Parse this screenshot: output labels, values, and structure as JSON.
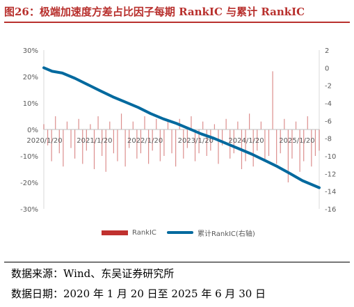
{
  "title": "图26：极端加速度方差占比因子每期 RankIC 与累计 RankIC",
  "legend": {
    "bar_label": "RankIC",
    "line_label": "累计RankIC(右轴)"
  },
  "notes": {
    "source": "数据来源：Wind、东吴证券研究所",
    "date": "数据日期：2020 年 1 月 20 日至 2025 年 6 月 30 日"
  },
  "colors": {
    "bar": "#c0312f",
    "line": "#00699e",
    "title": "#b8302d"
  },
  "chart_data": {
    "type": "bar",
    "combo": "bar + line (secondary axis)",
    "xlabel": "",
    "x_tick_labels": [
      "2020/1/20",
      "2021/1/20",
      "2022/1/20",
      "2023/1/20",
      "2024/1/20",
      "2025/1/20"
    ],
    "x_tick_dates": [
      "2020-01-20",
      "2021-01-20",
      "2022-01-20",
      "2023-01-20",
      "2024-01-20",
      "2025-01-20"
    ],
    "x_range": [
      "2020-01-20",
      "2025-06-30"
    ],
    "y_left": {
      "label": "",
      "min": -0.3,
      "max": 0.3,
      "ticks": [
        0.3,
        0.2,
        0.1,
        0.0,
        -0.1,
        -0.2,
        -0.3
      ],
      "tick_labels": [
        "30%",
        "20%",
        "10%",
        "0%",
        "-10%",
        "-20%",
        "-30%"
      ]
    },
    "y_right": {
      "label": "",
      "min": -16,
      "max": 2,
      "ticks": [
        2,
        0,
        -2,
        -4,
        -6,
        -8,
        -10,
        -12,
        -14,
        -16
      ],
      "tick_labels": [
        "2",
        "0",
        "-2",
        "-4",
        "-6",
        "-8",
        "-10",
        "-12",
        "-14",
        "-16"
      ]
    },
    "grid": false,
    "legend_position": "bottom",
    "series": [
      {
        "name": "RankIC",
        "type": "bar",
        "axis": "left",
        "x": [
          "2020-01-20",
          "2020-02-17",
          "2020-03-16",
          "2020-04-13",
          "2020-05-11",
          "2020-06-08",
          "2020-07-06",
          "2020-08-03",
          "2020-08-31",
          "2020-09-28",
          "2020-10-26",
          "2020-11-23",
          "2020-12-21",
          "2021-01-18",
          "2021-02-15",
          "2021-03-15",
          "2021-04-12",
          "2021-05-10",
          "2021-06-07",
          "2021-07-05",
          "2021-08-02",
          "2021-08-30",
          "2021-09-27",
          "2021-10-25",
          "2021-11-22",
          "2021-12-20",
          "2022-01-17",
          "2022-02-14",
          "2022-03-14",
          "2022-04-11",
          "2022-05-09",
          "2022-06-06",
          "2022-07-04",
          "2022-08-01",
          "2022-08-29",
          "2022-09-26",
          "2022-10-24",
          "2022-11-21",
          "2022-12-19",
          "2023-01-16",
          "2023-02-13",
          "2023-03-13",
          "2023-04-10",
          "2023-05-08",
          "2023-06-05",
          "2023-07-03",
          "2023-07-31",
          "2023-08-28",
          "2023-09-25",
          "2023-10-23",
          "2023-11-20",
          "2023-12-18",
          "2024-01-15",
          "2024-02-12",
          "2024-03-11",
          "2024-04-08",
          "2024-05-06",
          "2024-06-03",
          "2024-07-01",
          "2024-07-29",
          "2024-08-26",
          "2024-09-23",
          "2024-10-21",
          "2024-11-18",
          "2024-12-16",
          "2025-01-13",
          "2025-02-10",
          "2025-03-10",
          "2025-04-07",
          "2025-05-05",
          "2025-06-02",
          "2025-06-30"
        ],
        "values": [
          0.02,
          -0.06,
          -0.12,
          0.05,
          -0.09,
          -0.14,
          0.03,
          -0.07,
          -0.11,
          0.04,
          -0.13,
          -0.08,
          0.02,
          -0.15,
          0.05,
          -0.1,
          -0.16,
          0.03,
          -0.09,
          -0.12,
          0.06,
          -0.14,
          -0.07,
          0.03,
          -0.11,
          -0.09,
          0.05,
          -0.13,
          -0.08,
          0.04,
          -0.12,
          -0.1,
          0.03,
          -0.09,
          -0.14,
          0.04,
          -0.11,
          -0.07,
          0.05,
          -0.12,
          -0.09,
          0.03,
          -0.1,
          -0.08,
          0.02,
          -0.13,
          -0.06,
          0.04,
          -0.11,
          -0.09,
          0.03,
          -0.15,
          -0.12,
          0.06,
          -0.14,
          -0.08,
          0.03,
          -0.12,
          -0.1,
          0.22,
          -0.13,
          -0.09,
          0.04,
          -0.2,
          -0.11,
          0.03,
          -0.16,
          -0.12,
          0.05,
          -0.14,
          -0.1,
          -0.08
        ]
      },
      {
        "name": "累计RankIC(右轴)",
        "type": "line",
        "axis": "right",
        "x": [
          "2020-01-20",
          "2020-03-20",
          "2020-06-01",
          "2020-09-01",
          "2020-12-01",
          "2021-03-01",
          "2021-06-01",
          "2021-09-01",
          "2021-12-01",
          "2022-03-01",
          "2022-06-01",
          "2022-09-01",
          "2022-12-01",
          "2023-03-01",
          "2023-06-01",
          "2023-09-01",
          "2023-12-01",
          "2024-03-01",
          "2024-06-01",
          "2024-09-01",
          "2024-12-01",
          "2025-03-01",
          "2025-06-30"
        ],
        "values": [
          0.0,
          -0.4,
          -0.6,
          -1.2,
          -1.9,
          -2.6,
          -3.3,
          -3.9,
          -4.5,
          -5.2,
          -5.8,
          -6.3,
          -6.9,
          -7.5,
          -8.0,
          -8.6,
          -9.2,
          -9.8,
          -10.5,
          -11.2,
          -12.0,
          -12.8,
          -13.6
        ]
      }
    ]
  }
}
